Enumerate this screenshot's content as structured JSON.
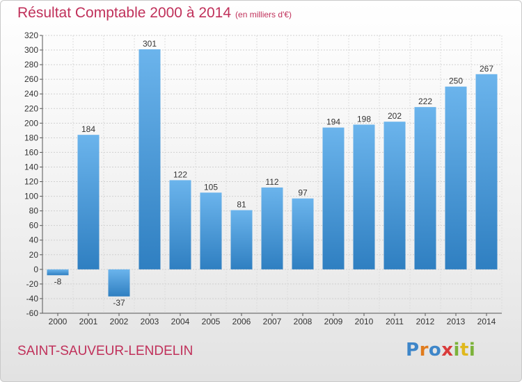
{
  "page": {
    "title": "Résultat Comptable 2000 à 2014",
    "subtitle": "(en milliers d'€)",
    "commune": "SAINT-SAUVEUR-LENDELIN",
    "logo_text": "Proxiti"
  },
  "colors": {
    "title": "#c0305a",
    "bar_light": "#6bb4ec",
    "bar_dark": "#2f7fc1",
    "grid": "#cccccc",
    "axis_text": "#333333"
  },
  "chart_data": {
    "type": "bar",
    "title": "Résultat Comptable 2000 à 2014",
    "ylabel": "en milliers d'€",
    "xlabel": "",
    "categories": [
      "2000",
      "2001",
      "2002",
      "2003",
      "2004",
      "2005",
      "2006",
      "2007",
      "2008",
      "2009",
      "2010",
      "2011",
      "2012",
      "2013",
      "2014"
    ],
    "values": [
      -8,
      184,
      -37,
      301,
      122,
      105,
      81,
      112,
      97,
      194,
      198,
      202,
      222,
      250,
      267
    ],
    "ylim": [
      -60,
      320
    ],
    "ytick_step": 20,
    "grid": true
  }
}
